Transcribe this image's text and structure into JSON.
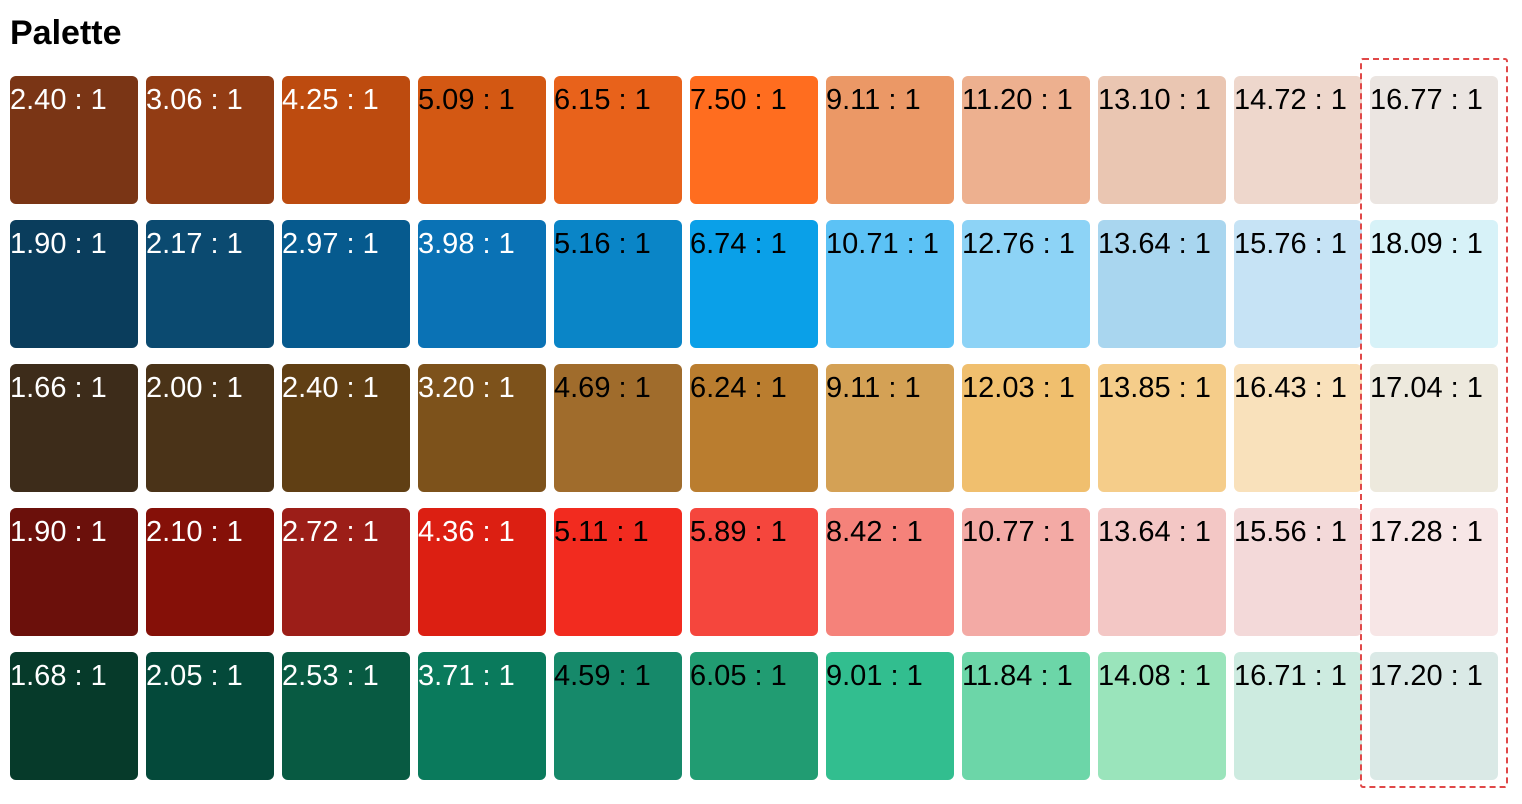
{
  "title": "Palette",
  "rows": [
    [
      {
        "label": "2.40 : 1",
        "color": "#7a3515",
        "text_color": "#ffffff"
      },
      {
        "label": "3.06 : 1",
        "color": "#923c14",
        "text_color": "#ffffff"
      },
      {
        "label": "4.25 : 1",
        "color": "#bd4b0f",
        "text_color": "#ffffff"
      },
      {
        "label": "5.09 : 1",
        "color": "#d35813",
        "text_color": "#000000"
      },
      {
        "label": "6.15 : 1",
        "color": "#e8621b",
        "text_color": "#000000"
      },
      {
        "label": "7.50 : 1",
        "color": "#ff6d1f",
        "text_color": "#000000"
      },
      {
        "label": "9.11 : 1",
        "color": "#eb9866",
        "text_color": "#000000"
      },
      {
        "label": "11.20 : 1",
        "color": "#edb08f",
        "text_color": "#000000"
      },
      {
        "label": "13.10 : 1",
        "color": "#eac6b2",
        "text_color": "#000000"
      },
      {
        "label": "14.72 : 1",
        "color": "#eed7cc",
        "text_color": "#000000"
      },
      {
        "label": "16.77 : 1",
        "color": "#ebe5e1",
        "text_color": "#000000"
      }
    ],
    [
      {
        "label": "1.90 : 1",
        "color": "#0a3d5c",
        "text_color": "#ffffff"
      },
      {
        "label": "2.17 : 1",
        "color": "#0b4a70",
        "text_color": "#ffffff"
      },
      {
        "label": "2.97 : 1",
        "color": "#065a8e",
        "text_color": "#ffffff"
      },
      {
        "label": "3.98 : 1",
        "color": "#0a72b5",
        "text_color": "#ffffff"
      },
      {
        "label": "5.16 : 1",
        "color": "#0a85c7",
        "text_color": "#000000"
      },
      {
        "label": "6.74 : 1",
        "color": "#0aa0e8",
        "text_color": "#000000"
      },
      {
        "label": "10.71 : 1",
        "color": "#5cc2f5",
        "text_color": "#000000"
      },
      {
        "label": "12.76 : 1",
        "color": "#8dd3f6",
        "text_color": "#000000"
      },
      {
        "label": "13.64 : 1",
        "color": "#a9d6ef",
        "text_color": "#000000"
      },
      {
        "label": "15.76 : 1",
        "color": "#c6e3f5",
        "text_color": "#000000"
      },
      {
        "label": "18.09 : 1",
        "color": "#d7f2f8",
        "text_color": "#000000"
      }
    ],
    [
      {
        "label": "1.66 : 1",
        "color": "#3d2c1a",
        "text_color": "#ffffff"
      },
      {
        "label": "2.00 : 1",
        "color": "#4a3318",
        "text_color": "#ffffff"
      },
      {
        "label": "2.40 : 1",
        "color": "#603f14",
        "text_color": "#ffffff"
      },
      {
        "label": "3.20 : 1",
        "color": "#7d521b",
        "text_color": "#ffffff"
      },
      {
        "label": "4.69 : 1",
        "color": "#a06c2c",
        "text_color": "#000000"
      },
      {
        "label": "6.24 : 1",
        "color": "#ba7d2f",
        "text_color": "#000000"
      },
      {
        "label": "9.11 : 1",
        "color": "#d4a155",
        "text_color": "#000000"
      },
      {
        "label": "12.03 : 1",
        "color": "#f0bf6e",
        "text_color": "#000000"
      },
      {
        "label": "13.85 : 1",
        "color": "#f5cd8a",
        "text_color": "#000000"
      },
      {
        "label": "16.43 : 1",
        "color": "#f9e1bb",
        "text_color": "#000000"
      },
      {
        "label": "17.04 : 1",
        "color": "#ede9dd",
        "text_color": "#000000"
      }
    ],
    [
      {
        "label": "1.90 : 1",
        "color": "#6b100b",
        "text_color": "#ffffff"
      },
      {
        "label": "2.10 : 1",
        "color": "#851008",
        "text_color": "#ffffff"
      },
      {
        "label": "2.72 : 1",
        "color": "#9c1e18",
        "text_color": "#ffffff"
      },
      {
        "label": "4.36 : 1",
        "color": "#dc1f12",
        "text_color": "#ffffff"
      },
      {
        "label": "5.11 : 1",
        "color": "#f22b1f",
        "text_color": "#000000"
      },
      {
        "label": "5.89 : 1",
        "color": "#f5463d",
        "text_color": "#000000"
      },
      {
        "label": "8.42 : 1",
        "color": "#f5827a",
        "text_color": "#000000"
      },
      {
        "label": "10.77 : 1",
        "color": "#f3aaa5",
        "text_color": "#000000"
      },
      {
        "label": "13.64 : 1",
        "color": "#f3c7c5",
        "text_color": "#000000"
      },
      {
        "label": "15.56 : 1",
        "color": "#f3d9d9",
        "text_color": "#000000"
      },
      {
        "label": "17.28 : 1",
        "color": "#f7e6e6",
        "text_color": "#000000"
      }
    ],
    [
      {
        "label": "1.68 : 1",
        "color": "#063a2a",
        "text_color": "#ffffff"
      },
      {
        "label": "2.05 : 1",
        "color": "#04493a",
        "text_color": "#ffffff"
      },
      {
        "label": "2.53 : 1",
        "color": "#085a42",
        "text_color": "#ffffff"
      },
      {
        "label": "3.71 : 1",
        "color": "#0a7a5c",
        "text_color": "#ffffff"
      },
      {
        "label": "4.59 : 1",
        "color": "#16896a",
        "text_color": "#000000"
      },
      {
        "label": "6.05 : 1",
        "color": "#219c72",
        "text_color": "#000000"
      },
      {
        "label": "9.01 : 1",
        "color": "#32be8f",
        "text_color": "#000000"
      },
      {
        "label": "11.84 : 1",
        "color": "#6cd6a8",
        "text_color": "#000000"
      },
      {
        "label": "14.08 : 1",
        "color": "#9ae4bb",
        "text_color": "#000000"
      },
      {
        "label": "16.71 : 1",
        "color": "#cdebe0",
        "text_color": "#000000"
      },
      {
        "label": "17.20 : 1",
        "color": "#dae9e6",
        "text_color": "#000000"
      }
    ]
  ]
}
